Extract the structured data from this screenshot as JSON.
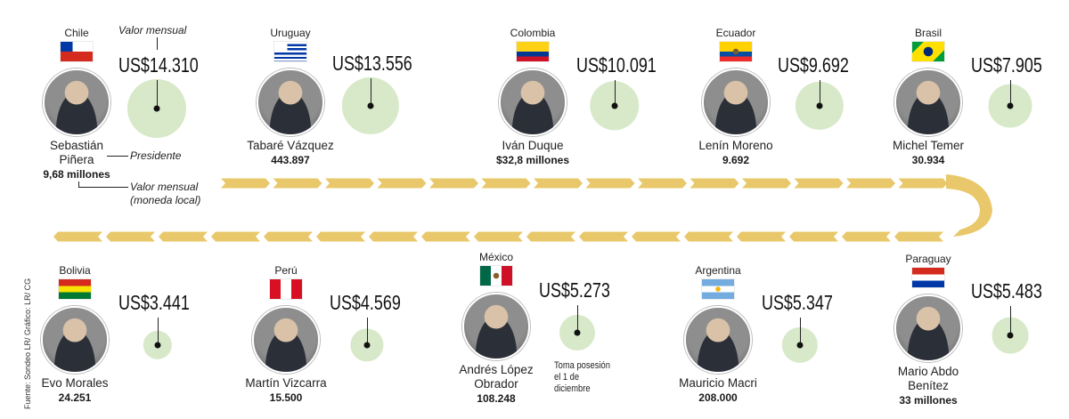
{
  "legend": {
    "valor_mensual": "Valor mensual",
    "presidente": "Presidente",
    "valor_mensual_local": "Valor mensual",
    "moneda_local": "(moneda local)"
  },
  "source": "Fuente: Sondeo LR/ Gráfico: LR/ CG",
  "colors": {
    "bubble": "#d7e9c8",
    "arrow": "#e8c86a"
  },
  "chart_data": {
    "type": "bubble-timeline",
    "title": "",
    "unit": "US$",
    "items": [
      {
        "country": "Chile",
        "flag": "chile-flag",
        "president_lines": [
          "Sebastián",
          "Piñera"
        ],
        "local_value": "9,68 millones",
        "usd_label": "US$14.310",
        "usd": 14310,
        "note": ""
      },
      {
        "country": "Uruguay",
        "flag": "uruguay-flag",
        "president_lines": [
          "Tabaré Vázquez"
        ],
        "local_value": "443.897",
        "usd_label": "US$13.556",
        "usd": 13556,
        "note": ""
      },
      {
        "country": "Colombia",
        "flag": "colombia-flag",
        "president_lines": [
          "Iván Duque"
        ],
        "local_value": "$32,8 millones",
        "usd_label": "US$10.091",
        "usd": 10091,
        "note": ""
      },
      {
        "country": "Ecuador",
        "flag": "ecuador-flag",
        "president_lines": [
          "Lenín Moreno"
        ],
        "local_value": "9.692",
        "usd_label": "US$9.692",
        "usd": 9692,
        "note": ""
      },
      {
        "country": "Brasil",
        "flag": "brazil-flag",
        "president_lines": [
          "Michel Temer"
        ],
        "local_value": "30.934",
        "usd_label": "US$7.905",
        "usd": 7905,
        "note": ""
      },
      {
        "country": "Paraguay",
        "flag": "paraguay-flag",
        "president_lines": [
          "Mario Abdo",
          "Benítez"
        ],
        "local_value": "33 millones",
        "usd_label": "US$5.483",
        "usd": 5483,
        "note": ""
      },
      {
        "country": "Argentina",
        "flag": "argentina-flag",
        "president_lines": [
          "Mauricio Macri"
        ],
        "local_value": "208.000",
        "usd_label": "US$5.347",
        "usd": 5347,
        "note": ""
      },
      {
        "country": "México",
        "flag": "mexico-flag",
        "president_lines": [
          "Andrés López",
          "Obrador"
        ],
        "local_value": "108.248",
        "usd_label": "US$5.273",
        "usd": 5273,
        "note_lines": [
          "Toma posesión",
          "el 1 de",
          "diciembre"
        ]
      },
      {
        "country": "Perú",
        "flag": "peru-flag",
        "president_lines": [
          "Martín Vizcarra"
        ],
        "local_value": "15.500",
        "usd_label": "US$4.569",
        "usd": 4569,
        "note": ""
      },
      {
        "country": "Bolivia",
        "flag": "bolivia-flag",
        "president_lines": [
          "Evo Morales"
        ],
        "local_value": "24.251",
        "usd_label": "US$3.441",
        "usd": 3441,
        "note": ""
      }
    ]
  }
}
